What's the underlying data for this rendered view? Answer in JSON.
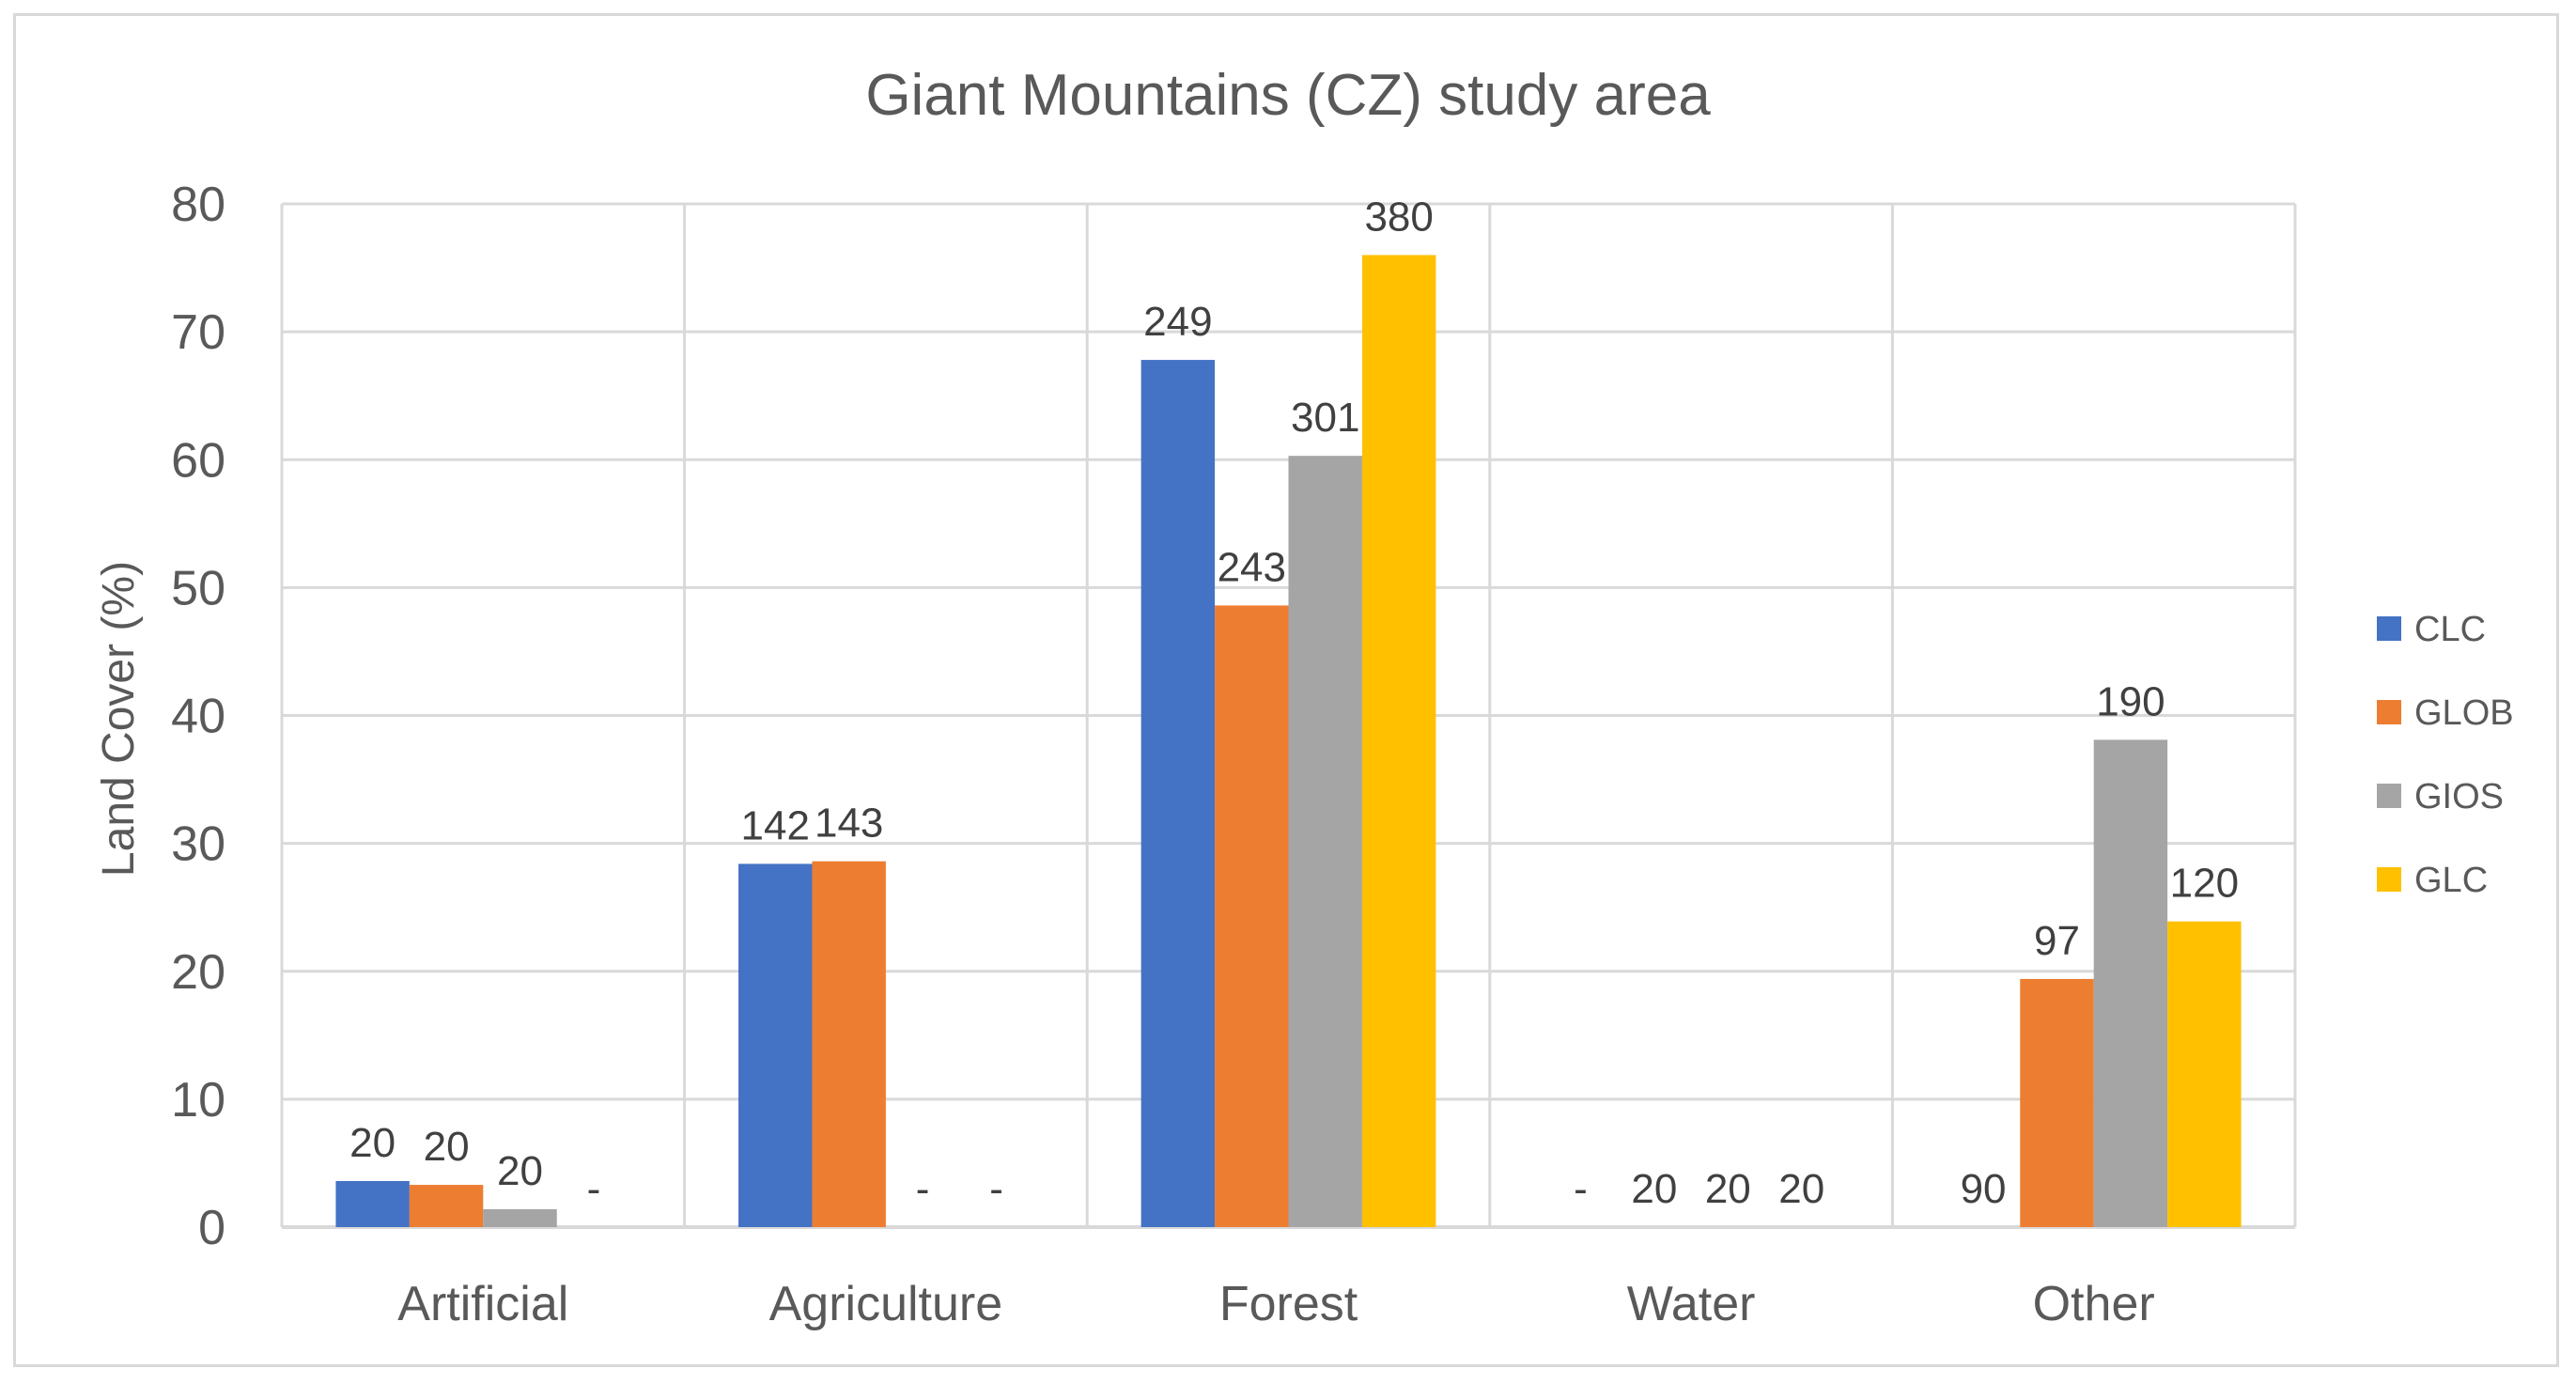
{
  "chart_data": {
    "type": "bar",
    "title": "Giant Mountains (CZ) study area",
    "xlabel": "",
    "ylabel": "Land Cover (%)",
    "ylim": [
      0,
      80
    ],
    "yticks": [
      "0",
      "10",
      "20",
      "30",
      "40",
      "50",
      "60",
      "70",
      "80"
    ],
    "grid": true,
    "legend_position": "right",
    "categories": [
      "Artificial",
      "Agriculture",
      "Forest",
      "Water",
      "Other"
    ],
    "series": [
      {
        "name": "CLC",
        "color": "#4472c4",
        "values": [
          3.6,
          28.4,
          67.8,
          0,
          0
        ],
        "labels": [
          "20",
          "142",
          "249",
          "-",
          "90"
        ]
      },
      {
        "name": "GLOB",
        "color": "#ed7d31",
        "values": [
          3.3,
          28.6,
          48.6,
          0,
          19.4
        ],
        "labels": [
          "20",
          "143",
          "243",
          "20",
          "97"
        ]
      },
      {
        "name": "GIOS",
        "color": "#a5a5a5",
        "values": [
          1.4,
          0,
          60.3,
          0,
          38.1
        ],
        "labels": [
          "20",
          "-",
          "301",
          "20",
          "190"
        ]
      },
      {
        "name": "GLC",
        "color": "#ffc000",
        "values": [
          0,
          0,
          76.0,
          0,
          23.9
        ],
        "labels": [
          "-",
          "-",
          "380",
          "20",
          "120"
        ]
      }
    ]
  }
}
